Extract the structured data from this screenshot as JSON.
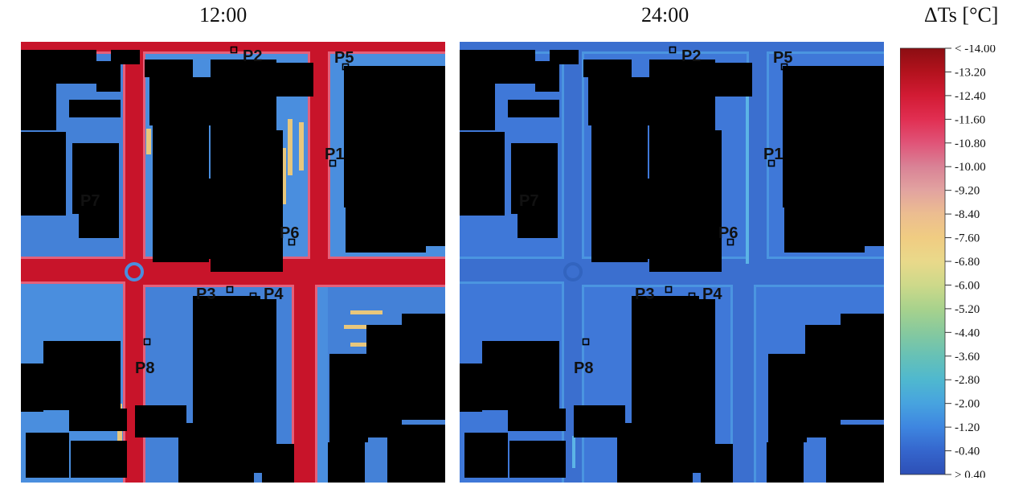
{
  "titles": {
    "left": "12:00",
    "right": "24:00",
    "legend": "ΔTs [°C]"
  },
  "legend": {
    "labels": [
      "< -14.00",
      "-13.20",
      "-12.40",
      "-11.60",
      "-10.80",
      "-10.00",
      "-9.20",
      "-8.40",
      "-7.60",
      "-6.80",
      "-6.00",
      "-5.20",
      "-4.40",
      "-3.60",
      "-2.80",
      "-2.00",
      "-1.20",
      "-0.40",
      "> 0.40"
    ],
    "colors": [
      "#8b0e12",
      "#b3121d",
      "#d21b34",
      "#e12f52",
      "#e05478",
      "#d98296",
      "#e2a3a0",
      "#ecbd90",
      "#f0cc82",
      "#e9d98a",
      "#cdd98a",
      "#a8d28c",
      "#86c99e",
      "#67c1b6",
      "#4fb8cf",
      "#47a3df",
      "#3e86e0",
      "#3566cd",
      "#2d4fb6"
    ]
  },
  "points": [
    {
      "id": "P2",
      "label": "P2"
    },
    {
      "id": "P5",
      "label": "P5"
    },
    {
      "id": "P1",
      "label": "P1"
    },
    {
      "id": "P7",
      "label": "P7"
    },
    {
      "id": "P6",
      "label": "P6"
    },
    {
      "id": "P3",
      "label": "P3"
    },
    {
      "id": "P4",
      "label": "P4"
    },
    {
      "id": "P8",
      "label": "P8"
    }
  ],
  "colors": {
    "building": "#000000",
    "noon_ground": "#4a8ede",
    "noon_street": "#c8142a",
    "noon_edge": "#e4607a",
    "noon_shade": "#3d70cf",
    "noon_hot": "#e8c77c",
    "night_ground": "#3f78d8",
    "night_street": "#3b6fcf",
    "night_edge": "#4b95e0"
  }
}
